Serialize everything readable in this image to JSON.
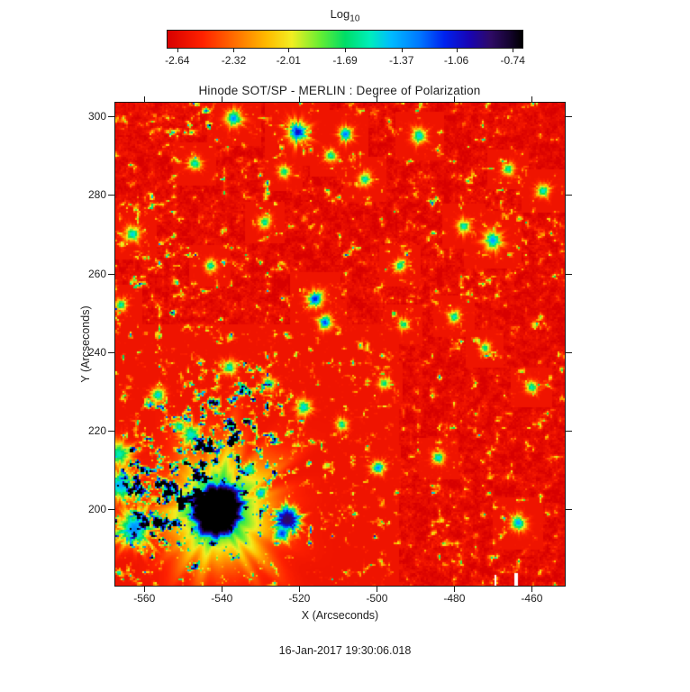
{
  "title": "Hinode SOT/SP - MERLIN : Degree of Polarization",
  "colorbar": {
    "label": "Log",
    "label_sub": "10",
    "tick_labels": [
      "-2.64",
      "-2.32",
      "-2.01",
      "-1.69",
      "-1.37",
      "-1.06",
      "-0.74"
    ]
  },
  "axes": {
    "xlabel": "X (Arcseconds)",
    "ylabel": "Y (Arcseconds)",
    "x_tick_labels": [
      "-560",
      "-540",
      "-520",
      "-500",
      "-480",
      "-460"
    ],
    "y_tick_labels": [
      "200",
      "220",
      "240",
      "260",
      "280",
      "300"
    ]
  },
  "footer": {
    "timestamp": "16-Jan-2017 19:30:06.018"
  },
  "colors": {
    "background": "#ffffff",
    "text": "#1f1f1f",
    "frame": "#1a1a1a"
  },
  "chart_data": {
    "type": "heatmap",
    "title": "Hinode SOT/SP - MERLIN : Degree of Polarization",
    "xlabel": "X (Arcseconds)",
    "ylabel": "Y (Arcseconds)",
    "value_label": "Log10 Degree of Polarization",
    "x_range": [
      -567.5,
      -451.5
    ],
    "y_range": [
      180.5,
      303.5
    ],
    "x_ticks": [
      -560,
      -540,
      -520,
      -500,
      -480,
      -460
    ],
    "y_ticks": [
      200,
      220,
      240,
      260,
      280,
      300
    ],
    "vmin": -2.7,
    "vmax": -0.68,
    "colorbar_ticks": [
      -2.64,
      -2.32,
      -2.01,
      -1.69,
      -1.37,
      -1.06,
      -0.74
    ],
    "colormap_stops": [
      [
        0.0,
        "#d80000"
      ],
      [
        0.1,
        "#ff2200"
      ],
      [
        0.18,
        "#ff6600"
      ],
      [
        0.28,
        "#ffbb00"
      ],
      [
        0.35,
        "#f2ee22"
      ],
      [
        0.43,
        "#66ee33"
      ],
      [
        0.5,
        "#00dd66"
      ],
      [
        0.57,
        "#00eebb"
      ],
      [
        0.63,
        "#00bbff"
      ],
      [
        0.71,
        "#0077ff"
      ],
      [
        0.78,
        "#0022ee"
      ],
      [
        0.85,
        "#1804b4"
      ],
      [
        0.91,
        "#2e0a66"
      ],
      [
        0.96,
        "#160433"
      ],
      [
        1.0,
        "#000000"
      ]
    ],
    "background_value": -2.58,
    "noise": {
      "seed": 11,
      "threshold": 0.6,
      "amplitude": 2.05,
      "exponent": 1.8
    },
    "features_format": [
      "x",
      "y",
      "sigma",
      "peak",
      "power",
      "wobble"
    ],
    "features": [
      [
        -541.3,
        199.6,
        7.5,
        -0.4,
        6,
        0.15
      ],
      [
        -541.3,
        199.6,
        13.5,
        -1.52,
        2,
        0.32
      ],
      [
        -523.2,
        197.3,
        3.4,
        -0.85,
        3,
        0.35
      ],
      [
        -524.5,
        193.8,
        2.2,
        -1.15,
        2,
        0.3
      ],
      [
        -562.5,
        195.0,
        4.5,
        -1.3,
        2,
        0.4
      ],
      [
        -566.0,
        206.0,
        4.0,
        -1.4,
        2,
        0.4
      ],
      [
        -566.5,
        214.0,
        3.0,
        -1.55,
        2,
        0.3
      ],
      [
        -548.0,
        219.0,
        2.6,
        -1.5,
        2,
        0.35
      ],
      [
        -520.5,
        296.0,
        2.4,
        -1.0,
        2,
        0.3
      ],
      [
        -537.0,
        299.5,
        2.0,
        -1.3,
        2,
        0.3
      ],
      [
        -516.0,
        253.5,
        1.9,
        -1.1,
        2,
        0.3
      ],
      [
        -513.5,
        247.5,
        1.7,
        -1.15,
        2,
        0.3
      ],
      [
        -556.5,
        229.0,
        1.8,
        -1.45,
        2,
        0.3
      ],
      [
        -551.0,
        221.0,
        1.6,
        -1.5,
        2,
        0.3
      ],
      [
        -499.5,
        210.5,
        1.6,
        -1.3,
        2,
        0.3
      ],
      [
        -484.0,
        213.0,
        1.5,
        -1.45,
        2,
        0.3
      ],
      [
        -463.5,
        196.5,
        1.9,
        -1.35,
        2,
        0.3
      ],
      [
        -470.0,
        268.5,
        2.1,
        -1.35,
        2,
        0.3
      ],
      [
        -477.5,
        272.0,
        1.6,
        -1.5,
        2,
        0.3
      ],
      [
        -489.0,
        295.0,
        1.8,
        -1.45,
        2,
        0.3
      ],
      [
        -503.0,
        284.0,
        1.6,
        -1.5,
        2,
        0.3
      ],
      [
        -529.0,
        273.0,
        1.5,
        -1.55,
        2,
        0.3
      ],
      [
        -543.0,
        262.0,
        1.5,
        -1.55,
        2,
        0.3
      ],
      [
        -547.0,
        288.0,
        1.6,
        -1.5,
        2,
        0.3
      ],
      [
        -563.0,
        270.0,
        1.8,
        -1.45,
        2,
        0.3
      ],
      [
        -566.0,
        252.0,
        1.5,
        -1.55,
        2,
        0.3
      ],
      [
        -538.0,
        236.0,
        1.7,
        -1.5,
        2,
        0.3
      ],
      [
        -528.0,
        232.0,
        1.6,
        -1.55,
        2,
        0.3
      ],
      [
        -519.0,
        226.0,
        1.8,
        -1.45,
        2,
        0.3
      ],
      [
        -509.0,
        221.5,
        1.5,
        -1.55,
        2,
        0.3
      ],
      [
        -498.0,
        232.0,
        1.4,
        -1.6,
        2,
        0.3
      ],
      [
        -494.0,
        262.0,
        1.5,
        -1.55,
        2,
        0.3
      ],
      [
        -480.0,
        249.0,
        1.5,
        -1.5,
        2,
        0.3
      ],
      [
        -472.0,
        241.0,
        1.4,
        -1.6,
        2,
        0.3
      ],
      [
        -460.0,
        231.0,
        1.5,
        -1.55,
        2,
        0.3
      ],
      [
        -457.0,
        281.0,
        1.6,
        -1.5,
        2,
        0.3
      ],
      [
        -466.0,
        286.5,
        1.5,
        -1.55,
        2,
        0.3
      ],
      [
        -512.0,
        290.0,
        1.5,
        -1.55,
        2,
        0.3
      ],
      [
        -524.0,
        286.0,
        1.4,
        -1.6,
        2,
        0.3
      ],
      [
        -508.0,
        295.5,
        1.7,
        -1.25,
        2,
        0.3
      ],
      [
        -493.0,
        247.0,
        1.4,
        -1.6,
        2,
        0.3
      ],
      [
        -533.0,
        210.0,
        2.0,
        -1.45,
        2,
        0.35
      ],
      [
        -530.0,
        204.0,
        1.8,
        -1.4,
        2,
        0.35
      ]
    ],
    "boost_format": [
      "x",
      "y",
      "sigma",
      "boost"
    ],
    "boost_regions": [
      [
        -548,
        214,
        15,
        0.3
      ],
      [
        -533,
        225,
        12,
        0.22
      ],
      [
        -560,
        200,
        12,
        0.35
      ],
      [
        -550,
        297,
        6,
        0.3
      ],
      [
        -556,
        258,
        10,
        0.18
      ],
      [
        -541,
        199,
        20,
        0.18
      ]
    ],
    "gaps_format": [
      "x",
      "width",
      "y0",
      "y1"
    ],
    "gaps": [
      [
        -469.3,
        0.8,
        180.5,
        183.2
      ],
      [
        -463.9,
        0.8,
        180.5,
        183.8
      ]
    ]
  }
}
